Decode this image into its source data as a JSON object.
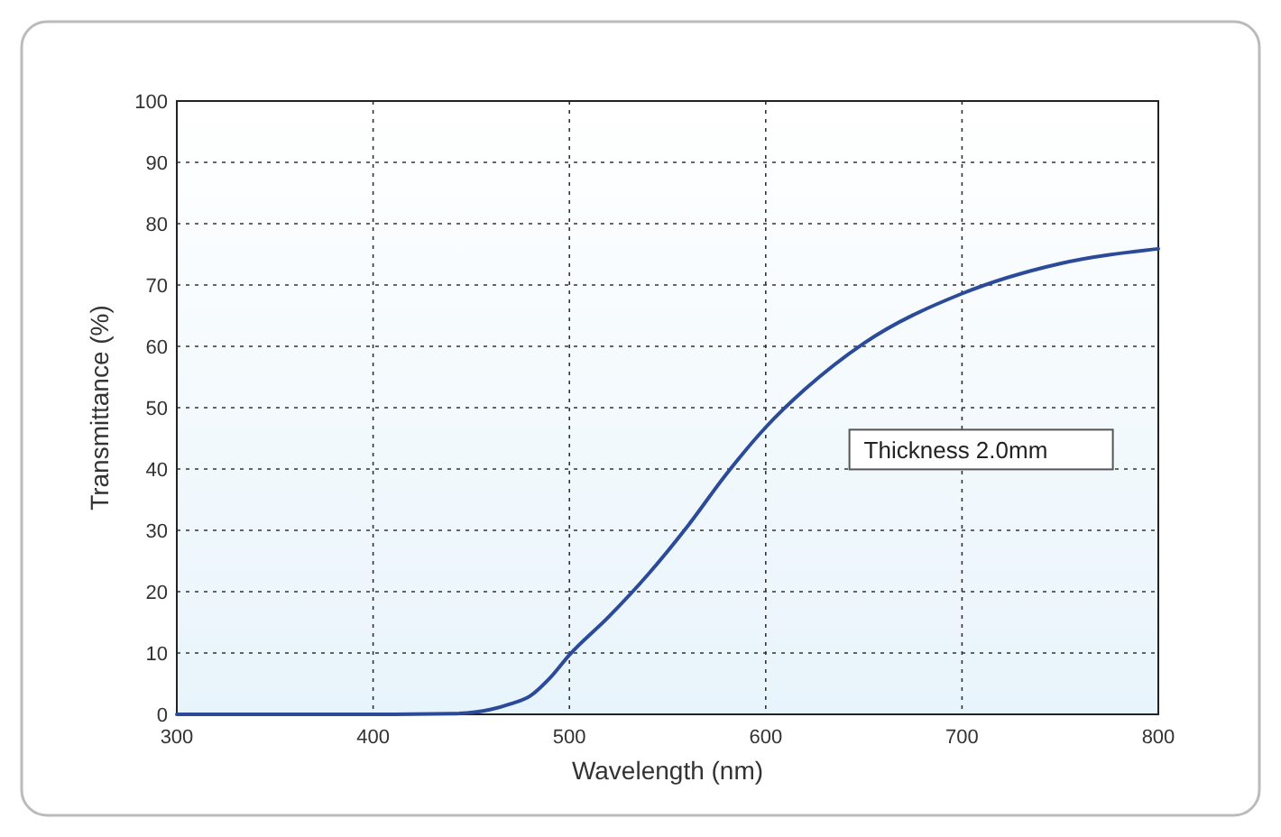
{
  "chart_data": {
    "type": "line",
    "xlabel": "Wavelength (nm)",
    "ylabel": "Transmittance (%)",
    "x": [
      300,
      350,
      400,
      440,
      460,
      470,
      480,
      490,
      500,
      520,
      540,
      560,
      580,
      600,
      620,
      650,
      700,
      750,
      800
    ],
    "series": [
      {
        "color": "#2b4a9a",
        "values": [
          0,
          0,
          0,
          0.1,
          0.8,
          1.7,
          3,
          5.9,
          9.7,
          15.9,
          22.8,
          30.6,
          39.2,
          46.8,
          53,
          60.5,
          68.6,
          73.5,
          75.9
        ]
      }
    ],
    "xlim": [
      300,
      800
    ],
    "xticks": [
      300,
      400,
      500,
      600,
      700,
      800
    ],
    "ylim": [
      0,
      100
    ],
    "yticks": [
      0,
      10,
      20,
      30,
      40,
      50,
      60,
      70,
      80,
      90,
      100
    ],
    "grid": true,
    "annotations": [
      "Thickness 2.0mm"
    ]
  }
}
